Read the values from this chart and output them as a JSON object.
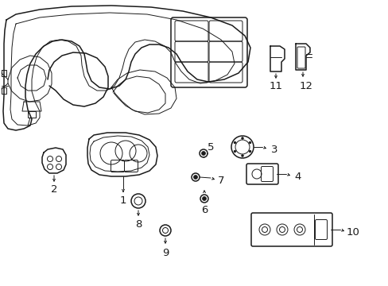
{
  "background_color": "#ffffff",
  "line_color": "#1a1a1a",
  "fig_width": 4.89,
  "fig_height": 3.6,
  "dpi": 100,
  "label_fontsize": 8.5,
  "bold_fontsize": 9.5
}
